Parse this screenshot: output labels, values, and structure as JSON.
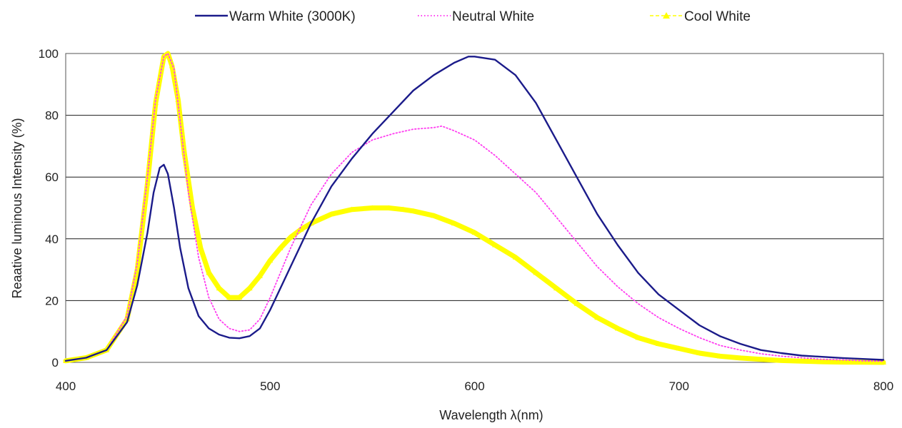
{
  "chart_data": {
    "type": "line",
    "xlabel": "Wavelength  λ(nm)",
    "ylabel": "Reaative  luminous  Intensity  (%)",
    "xlim": [
      400,
      800
    ],
    "ylim": [
      0,
      100
    ],
    "x_ticks": [
      "400",
      "500",
      "600",
      "700",
      "800"
    ],
    "y_ticks": [
      "0",
      "20",
      "40",
      "60",
      "80",
      "100"
    ],
    "grid": "horizontal",
    "legend_position": "top",
    "series": [
      {
        "name": "Warm White (3000K)",
        "color": "#1b1b8a",
        "style": "solid",
        "x": [
          400,
          410,
          420,
          430,
          435,
          440,
          443,
          446,
          448,
          450,
          453,
          456,
          460,
          465,
          470,
          475,
          480,
          485,
          490,
          495,
          500,
          505,
          510,
          515,
          520,
          530,
          540,
          550,
          560,
          570,
          580,
          590,
          597,
          600,
          610,
          620,
          630,
          640,
          650,
          660,
          670,
          680,
          690,
          700,
          710,
          720,
          730,
          740,
          750,
          760,
          770,
          780,
          790,
          800
        ],
        "values": [
          0.5,
          1.5,
          4,
          13,
          25,
          42,
          55,
          63,
          64,
          61,
          50,
          37,
          24,
          15,
          11,
          9,
          8,
          7.8,
          8.5,
          11,
          17,
          24,
          31,
          38,
          45,
          57,
          66,
          74,
          81,
          88,
          93,
          97,
          99,
          99,
          98,
          93,
          84,
          72,
          60,
          48,
          38,
          29,
          22,
          17,
          12,
          8.5,
          6,
          4,
          3,
          2.2,
          1.8,
          1.4,
          1.1,
          0.8
        ]
      },
      {
        "name": "Neutral White",
        "color": "#ff3df0",
        "style": "dotted",
        "x": [
          400,
          410,
          420,
          430,
          435,
          440,
          444,
          448,
          450,
          453,
          456,
          460,
          465,
          470,
          475,
          480,
          485,
          490,
          495,
          500,
          505,
          510,
          515,
          520,
          530,
          540,
          550,
          560,
          570,
          580,
          584,
          590,
          600,
          610,
          620,
          630,
          640,
          650,
          660,
          670,
          680,
          690,
          700,
          710,
          720,
          730,
          740,
          750,
          760,
          770,
          780,
          790,
          800
        ],
        "values": [
          0.5,
          1.5,
          4,
          15,
          32,
          60,
          85,
          99,
          100,
          95,
          78,
          55,
          34,
          21,
          14,
          11,
          10,
          10.5,
          14,
          21,
          29,
          37,
          44,
          51,
          61,
          68,
          72,
          74,
          75.5,
          76,
          76.5,
          75,
          72,
          67,
          61,
          55,
          47,
          39,
          31,
          24.5,
          19,
          14.5,
          11,
          8,
          5.5,
          4,
          2.8,
          2,
          1.5,
          1,
          0.8,
          0.5,
          0.4
        ]
      },
      {
        "name": "Cool White",
        "color": "#ffff00",
        "style": "dashed-triangle",
        "x": [
          400,
          410,
          420,
          430,
          435,
          440,
          444,
          448,
          450,
          452,
          455,
          458,
          462,
          466,
          470,
          475,
          480,
          485,
          490,
          495,
          500,
          505,
          510,
          515,
          520,
          530,
          540,
          550,
          558,
          565,
          570,
          580,
          590,
          600,
          610,
          620,
          630,
          640,
          650,
          660,
          670,
          680,
          690,
          700,
          710,
          720,
          730,
          740,
          750,
          760,
          770,
          780,
          790,
          800
        ],
        "values": [
          0.5,
          1.5,
          4,
          14,
          30,
          58,
          84,
          99,
          100,
          96,
          85,
          68,
          50,
          37,
          29,
          24,
          21,
          21,
          24,
          28,
          33,
          37,
          40.5,
          43,
          45,
          48,
          49.5,
          50,
          50,
          49.5,
          49,
          47.5,
          45,
          42,
          38,
          34,
          29,
          24,
          19,
          14.5,
          11,
          8,
          6,
          4.5,
          3,
          2,
          1.4,
          1,
          0.6,
          0.4,
          0.2,
          0.1,
          0.05,
          0
        ]
      }
    ]
  }
}
